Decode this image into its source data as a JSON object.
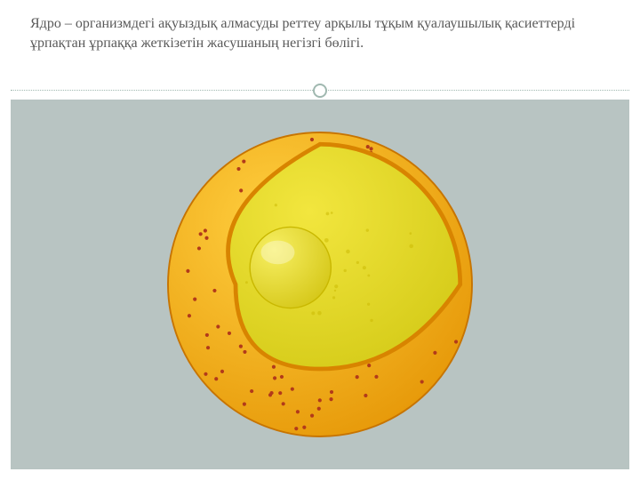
{
  "text": "Ядро – организмдегі ақуыздық алмасуды реттеу арқылы тұқым қуалаушылық қасиеттерді ұрпақтан ұрпаққа жеткізетін жасушаның негізгі бөлігі.",
  "text_color": "#595959",
  "text_fontsize": 16,
  "divider": {
    "color": "#a0b8b0",
    "circle_diameter": 16
  },
  "stage_bg": "#b8c4c2",
  "nucleus": {
    "type": "infographic",
    "diameter": 360,
    "outer_fill_light": "#ffcf3f",
    "outer_fill_dark": "#e79a0a",
    "outer_stroke": "#c77400",
    "inner_fill_light": "#f2e63e",
    "inner_fill_dark": "#d6cc1a",
    "inner_stroke": "#d88400",
    "nucleolus_fill_light": "#f7ef62",
    "nucleolus_fill_dark": "#d6c81a",
    "nucleolus_stroke": "#c9b800",
    "pore_color": "#b23a1a",
    "pore_radius": 2.2,
    "cut_border_width": 5,
    "inner_spot_color": "#c9b800"
  }
}
